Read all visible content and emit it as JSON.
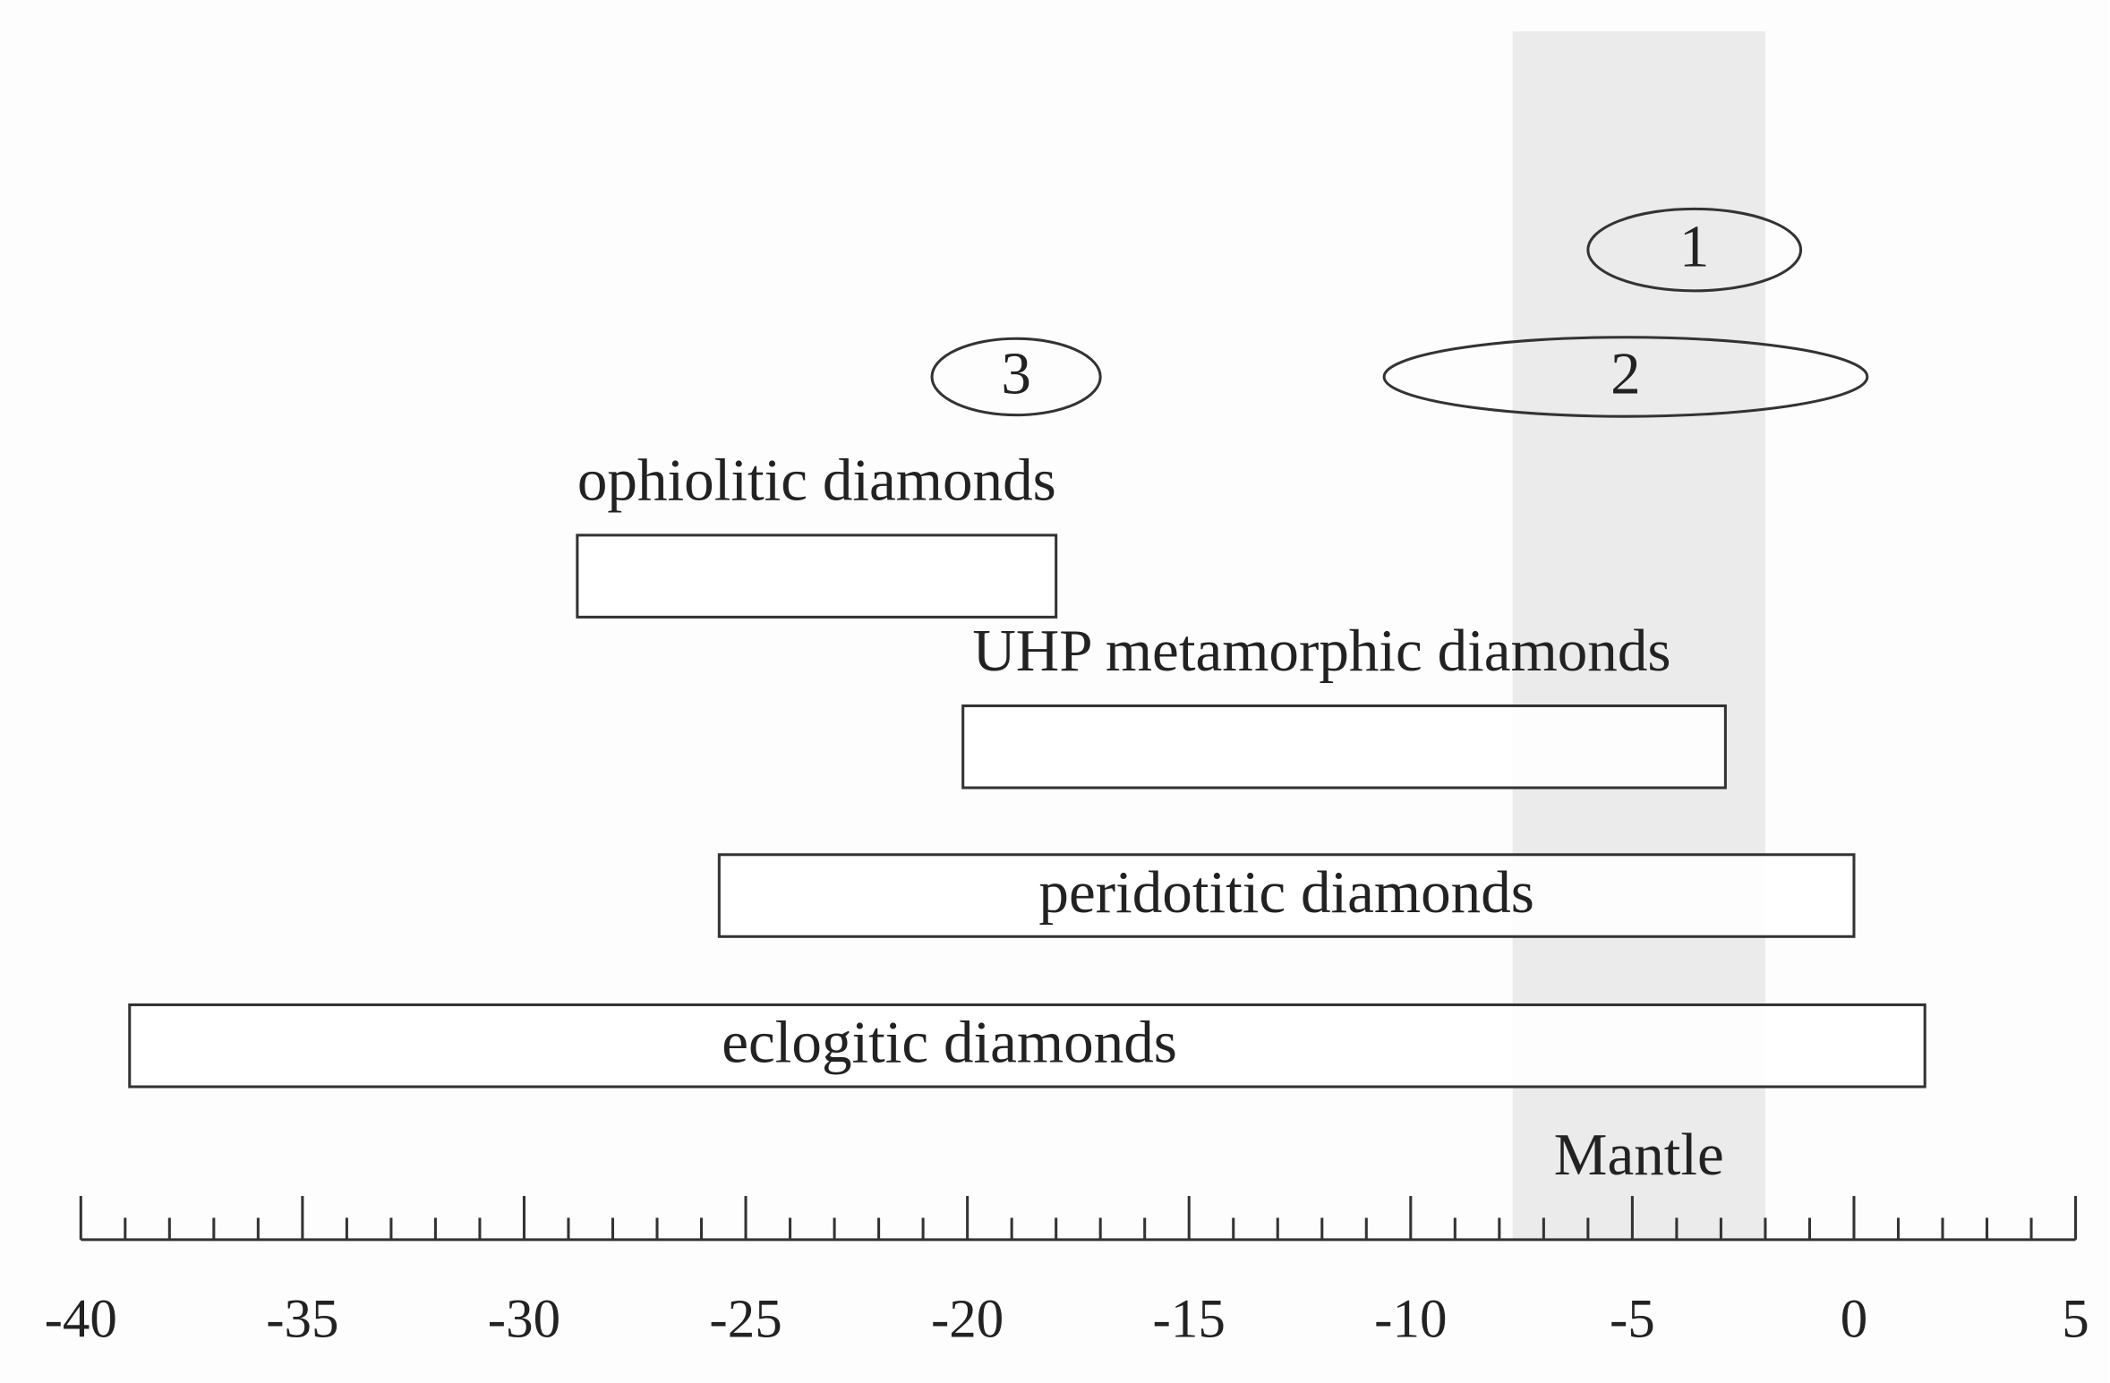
{
  "chart_data": {
    "type": "range",
    "xlim": [
      -40,
      5
    ],
    "xticks": [
      -40,
      -35,
      -30,
      -25,
      -20,
      -15,
      -10,
      -5,
      0,
      5
    ],
    "xminorticks": [
      -39,
      -38,
      -37,
      -36,
      -34,
      -33,
      -32,
      -31,
      -29,
      -28,
      -27,
      -26,
      -24,
      -23,
      -22,
      -21,
      -19,
      -18,
      -17,
      -16,
      -14,
      -13,
      -12,
      -11,
      -9,
      -8,
      -7,
      -6,
      -4,
      -3,
      -2,
      -1,
      1,
      2,
      3,
      4
    ],
    "band": {
      "label": "Mantle",
      "values": [
        -7.7,
        -2.0
      ],
      "color": "#ebebeb"
    },
    "ranges": [
      {
        "label": "1",
        "values": [
          -6.0,
          -1.2
        ],
        "shape": "ellipse",
        "label_position": "inside"
      },
      {
        "label": "2",
        "values": [
          -10.6,
          0.3
        ],
        "shape": "ellipse",
        "label_position": "inside"
      },
      {
        "label": "3",
        "values": [
          -20.8,
          -17.0
        ],
        "shape": "ellipse",
        "label_position": "inside"
      },
      {
        "label": "ophiolitic diamonds",
        "values": [
          -28.8,
          -18.0
        ],
        "shape": "box",
        "label_position": "above"
      },
      {
        "label": "UHP metamorphic diamonds",
        "values": [
          -20.1,
          -2.9
        ],
        "shape": "box",
        "label_position": "above"
      },
      {
        "label": "peridotitic diamonds",
        "values": [
          -25.6,
          0.0
        ],
        "shape": "box",
        "label_position": "inside"
      },
      {
        "label": "eclogitic diamonds",
        "values": [
          -38.9,
          1.6
        ],
        "shape": "box",
        "label_position": "inside"
      }
    ]
  }
}
